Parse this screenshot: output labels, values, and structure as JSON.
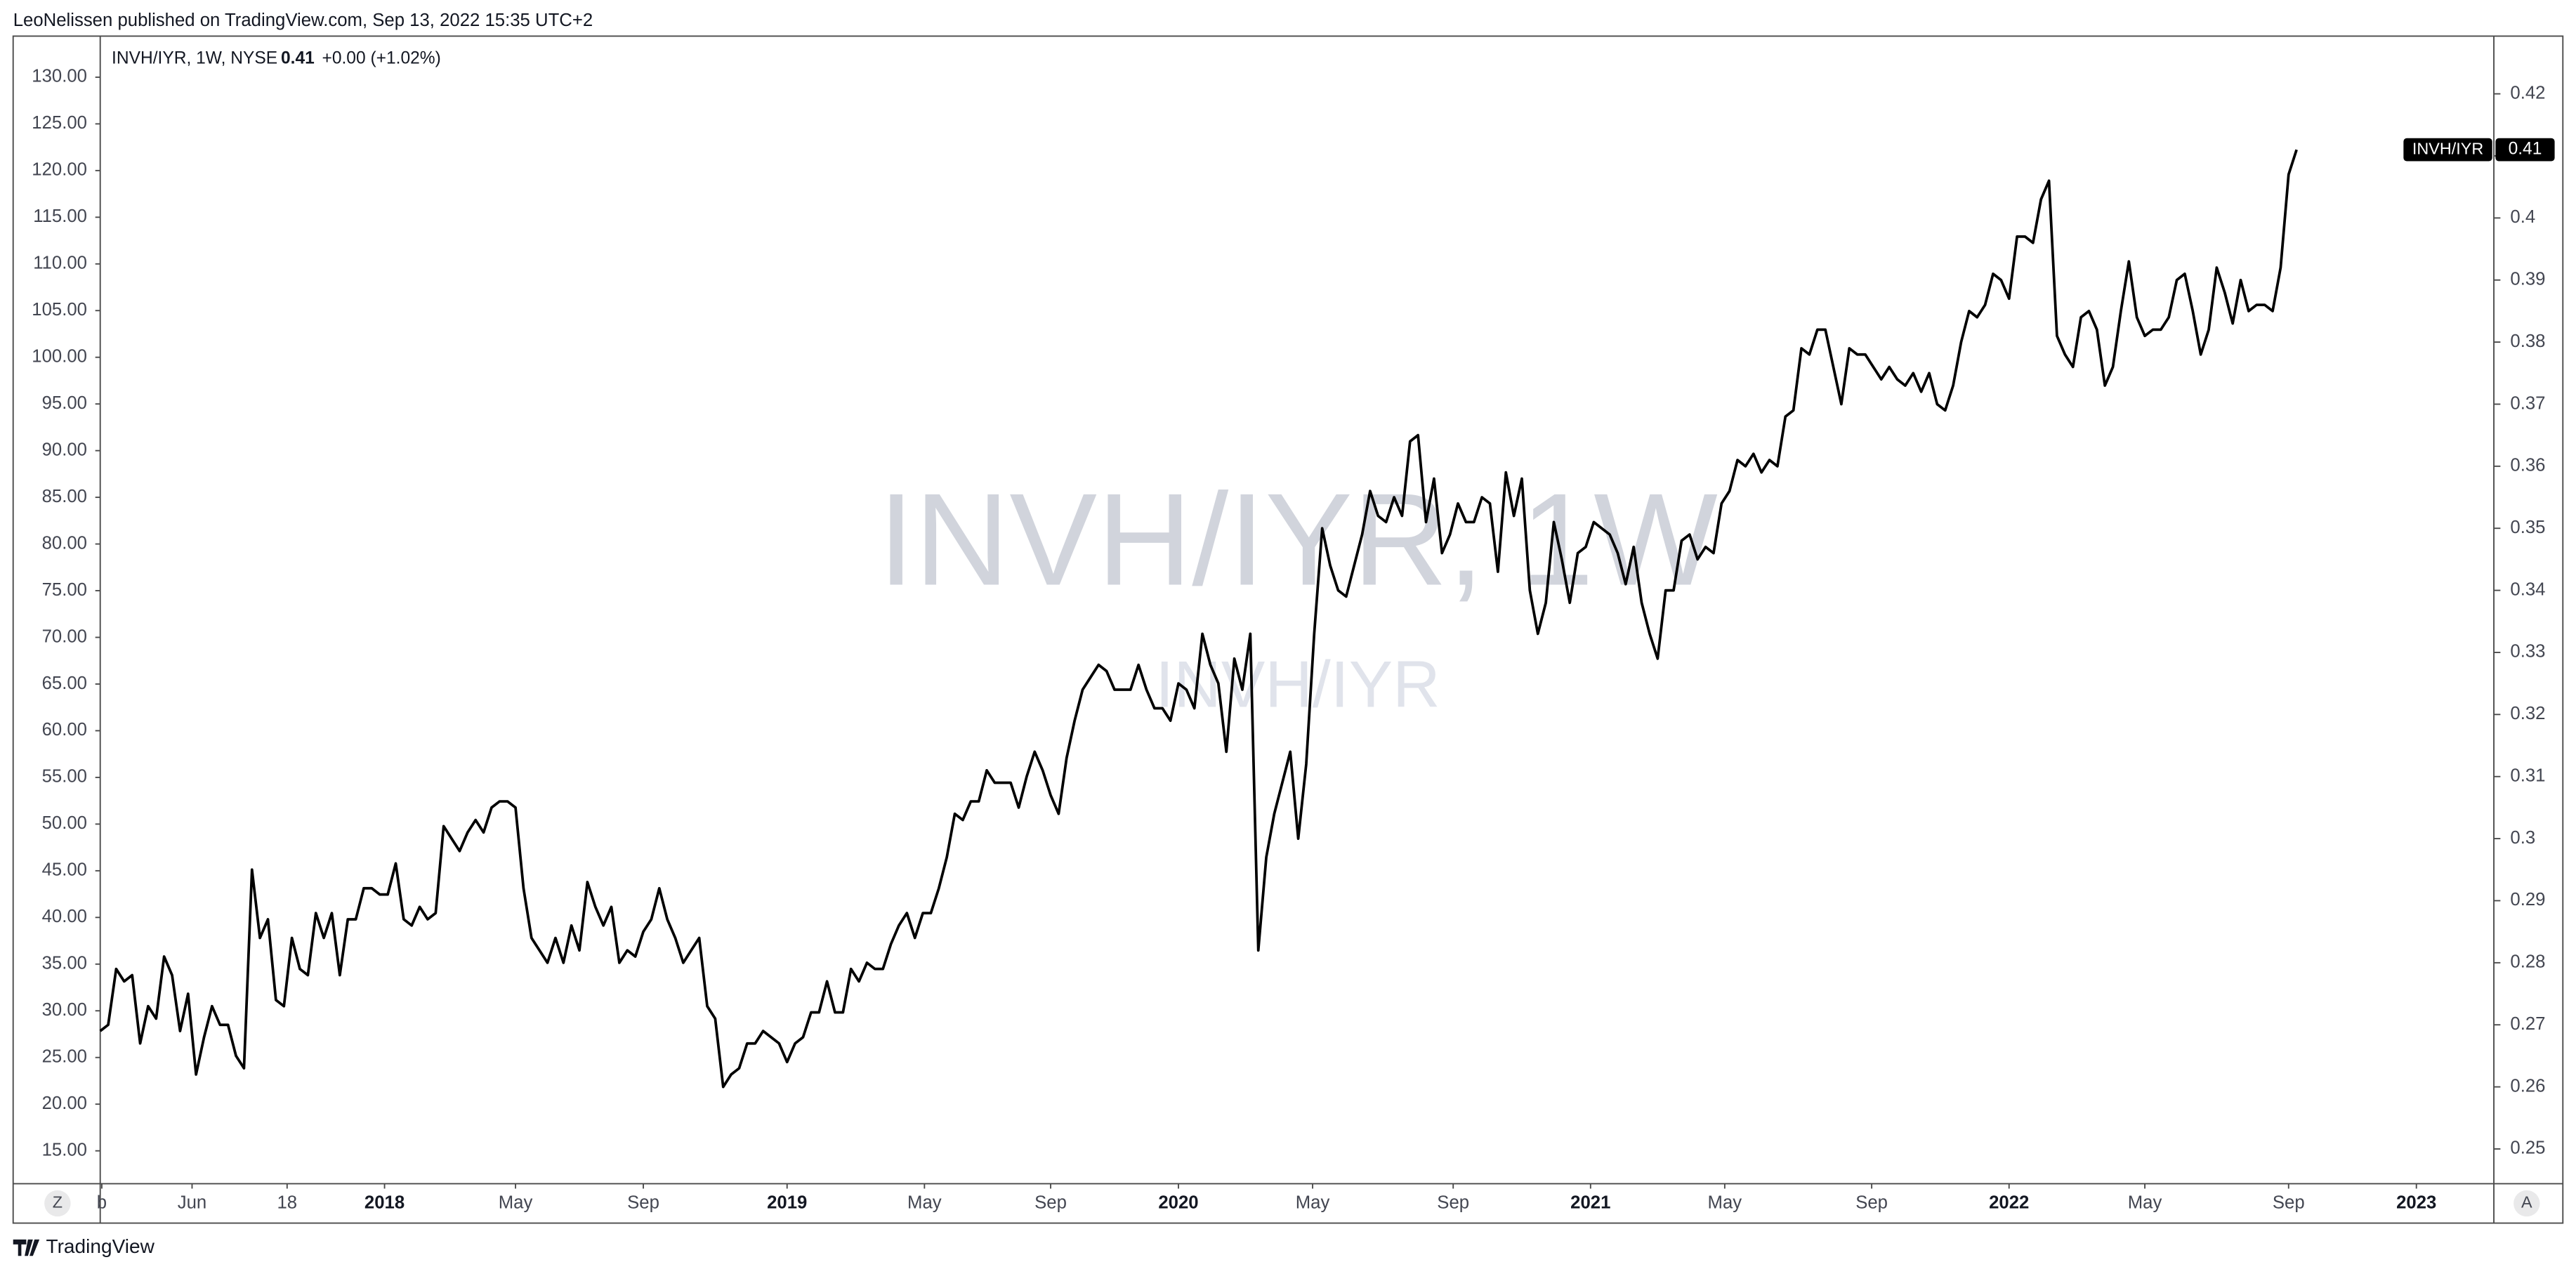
{
  "header": "LeoNelissen published on TradingView.com, Sep 13, 2022 15:35 UTC+2",
  "chart_data": {
    "type": "line",
    "legend": {
      "symbol": "INVH/IYR, 1W, NYSE",
      "last": "0.41",
      "change": "+0.00 (+1.02%)"
    },
    "watermark": "INVH/IYR, 1W",
    "watermark_sub": "INVH/IYR",
    "last_value_label": "0.41",
    "series": [
      {
        "name": "INVH/IYR",
        "color": "#000000",
        "values": [
          0.269,
          0.27,
          0.279,
          0.277,
          0.278,
          0.267,
          0.273,
          0.271,
          0.281,
          0.278,
          0.269,
          0.275,
          0.262,
          0.268,
          0.273,
          0.27,
          0.27,
          0.265,
          0.263,
          0.295,
          0.284,
          0.287,
          0.274,
          0.273,
          0.284,
          0.279,
          0.278,
          0.288,
          0.284,
          0.288,
          0.278,
          0.287,
          0.287,
          0.292,
          0.292,
          0.291,
          0.291,
          0.296,
          0.287,
          0.286,
          0.289,
          0.287,
          0.288,
          0.302,
          0.3,
          0.298,
          0.301,
          0.303,
          0.301,
          0.305,
          0.306,
          0.306,
          0.305,
          0.292,
          0.284,
          0.282,
          0.28,
          0.284,
          0.28,
          0.286,
          0.282,
          0.293,
          0.289,
          0.286,
          0.289,
          0.28,
          0.282,
          0.281,
          0.285,
          0.287,
          0.292,
          0.287,
          0.284,
          0.28,
          0.282,
          0.284,
          0.273,
          0.271,
          0.26,
          0.262,
          0.263,
          0.267,
          0.267,
          0.269,
          0.268,
          0.267,
          0.264,
          0.267,
          0.268,
          0.272,
          0.272,
          0.277,
          0.272,
          0.272,
          0.279,
          0.277,
          0.28,
          0.279,
          0.279,
          0.283,
          0.286,
          0.288,
          0.284,
          0.288,
          0.288,
          0.292,
          0.297,
          0.304,
          0.303,
          0.306,
          0.306,
          0.311,
          0.309,
          0.309,
          0.309,
          0.305,
          0.31,
          0.314,
          0.311,
          0.307,
          0.304,
          0.313,
          0.319,
          0.324,
          0.326,
          0.328,
          0.327,
          0.324,
          0.324,
          0.324,
          0.328,
          0.324,
          0.321,
          0.321,
          0.319,
          0.325,
          0.324,
          0.321,
          0.333,
          0.328,
          0.325,
          0.314,
          0.329,
          0.324,
          0.333,
          0.282,
          0.297,
          0.304,
          0.309,
          0.314,
          0.3,
          0.312,
          0.333,
          0.35,
          0.344,
          0.34,
          0.339,
          0.344,
          0.349,
          0.356,
          0.352,
          0.351,
          0.355,
          0.352,
          0.364,
          0.365,
          0.351,
          0.358,
          0.346,
          0.349,
          0.354,
          0.351,
          0.351,
          0.355,
          0.354,
          0.343,
          0.359,
          0.352,
          0.358,
          0.34,
          0.333,
          0.338,
          0.351,
          0.345,
          0.338,
          0.346,
          0.347,
          0.351,
          0.35,
          0.349,
          0.346,
          0.341,
          0.347,
          0.338,
          0.333,
          0.329,
          0.34,
          0.34,
          0.348,
          0.349,
          0.345,
          0.347,
          0.346,
          0.354,
          0.356,
          0.361,
          0.36,
          0.362,
          0.359,
          0.361,
          0.36,
          0.368,
          0.369,
          0.379,
          0.378,
          0.382,
          0.382,
          0.376,
          0.37,
          0.379,
          0.378,
          0.378,
          0.376,
          0.374,
          0.376,
          0.374,
          0.373,
          0.375,
          0.372,
          0.375,
          0.37,
          0.369,
          0.373,
          0.38,
          0.385,
          0.384,
          0.386,
          0.391,
          0.39,
          0.387,
          0.397,
          0.397,
          0.396,
          0.403,
          0.406,
          0.381,
          0.378,
          0.376,
          0.384,
          0.385,
          0.382,
          0.373,
          0.376,
          0.385,
          0.393,
          0.384,
          0.381,
          0.382,
          0.382,
          0.384,
          0.39,
          0.391,
          0.385,
          0.378,
          0.382,
          0.392,
          0.388,
          0.383,
          0.39,
          0.385,
          0.386,
          0.386,
          0.385,
          0.392,
          0.407,
          0.411
        ]
      }
    ],
    "xlim": [
      0,
      299.7
    ],
    "xticks": [
      {
        "value": 0.2,
        "label": "b"
      },
      {
        "value": 11.5,
        "label": "Jun"
      },
      {
        "value": 23.4,
        "label": "18"
      },
      {
        "value": 35.6,
        "label": "2018"
      },
      {
        "value": 52,
        "label": "May"
      },
      {
        "value": 68,
        "label": "Sep"
      },
      {
        "value": 86,
        "label": "2019"
      },
      {
        "value": 103.2,
        "label": "May"
      },
      {
        "value": 119,
        "label": "Sep"
      },
      {
        "value": 135,
        "label": "2020"
      },
      {
        "value": 151.8,
        "label": "May"
      },
      {
        "value": 169.4,
        "label": "Sep"
      },
      {
        "value": 186.6,
        "label": "2021"
      },
      {
        "value": 203.4,
        "label": "May"
      },
      {
        "value": 221.8,
        "label": "Sep"
      },
      {
        "value": 239,
        "label": "2022"
      },
      {
        "value": 256,
        "label": "May"
      },
      {
        "value": 274,
        "label": "Sep"
      },
      {
        "value": 290,
        "label": "2023"
      }
    ],
    "ylim": [
      0.2444,
      0.4293
    ],
    "yticks": [
      0.25,
      0.26,
      0.27,
      0.28,
      0.29,
      0.3,
      0.31,
      0.32,
      0.33,
      0.34,
      0.35,
      0.36,
      0.37,
      0.38,
      0.39,
      0.4,
      0.41,
      0.42
    ],
    "y2lim": [
      11.48,
      134.4
    ],
    "y2ticks": [
      {
        "value": 15,
        "label": "15.00"
      },
      {
        "value": 20,
        "label": "20.00"
      },
      {
        "value": 25,
        "label": "25.00"
      },
      {
        "value": 30,
        "label": "30.00"
      },
      {
        "value": 35,
        "label": "35.00"
      },
      {
        "value": 40,
        "label": "40.00"
      },
      {
        "value": 45,
        "label": "45.00"
      },
      {
        "value": 50,
        "label": "50.00"
      },
      {
        "value": 55,
        "label": "55.00"
      },
      {
        "value": 60,
        "label": "60.00"
      },
      {
        "value": 65,
        "label": "65.00"
      },
      {
        "value": 70,
        "label": "70.00"
      },
      {
        "value": 75,
        "label": "75.00"
      },
      {
        "value": 80,
        "label": "80.00"
      },
      {
        "value": 85,
        "label": "85.00"
      },
      {
        "value": 90,
        "label": "90.00"
      },
      {
        "value": 95,
        "label": "95.00"
      },
      {
        "value": 100,
        "label": "100.00"
      },
      {
        "value": 105,
        "label": "105.00"
      },
      {
        "value": 110,
        "label": "110.00"
      },
      {
        "value": 115,
        "label": "115.00"
      },
      {
        "value": 120,
        "label": "120.00"
      },
      {
        "value": 125,
        "label": "125.00"
      },
      {
        "value": 130,
        "label": "130.00"
      }
    ]
  },
  "buttons": {
    "left": "Z",
    "right": "A"
  },
  "footer": "TradingView"
}
